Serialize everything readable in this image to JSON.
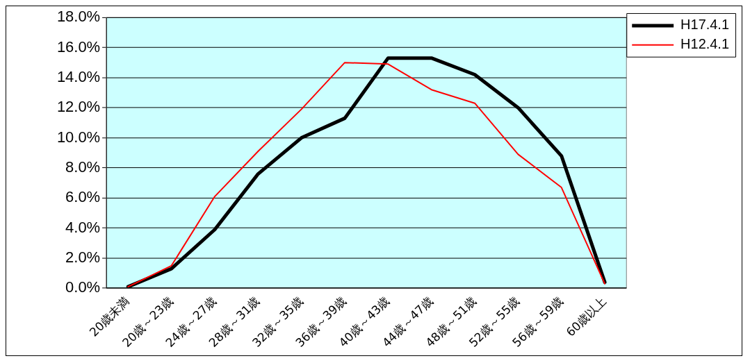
{
  "chart_data": {
    "type": "line",
    "categories": [
      "20歳未満",
      "20歳～23歳",
      "24歳～27歳",
      "28歳～31歳",
      "32歳～35歳",
      "36歳～39歳",
      "40歳～43歳",
      "44歳～47歳",
      "48歳～51歳",
      "52歳～55歳",
      "56歳～59歳",
      "60歳以上"
    ],
    "series": [
      {
        "name": "H17.4.1",
        "color": "#000000",
        "values": [
          0.1,
          1.3,
          3.9,
          7.6,
          10.0,
          11.3,
          15.3,
          15.3,
          14.2,
          12.0,
          8.8,
          0.4
        ]
      },
      {
        "name": "H12.4.1",
        "color": "#ff0000",
        "values": [
          0.1,
          1.5,
          6.1,
          9.1,
          11.9,
          15.0,
          14.9,
          13.2,
          12.3,
          8.9,
          6.7,
          0.3
        ]
      }
    ],
    "ylim": [
      0,
      18
    ],
    "yticks": [
      {
        "value": 0,
        "label": "0.0%"
      },
      {
        "value": 2,
        "label": "2.0%"
      },
      {
        "value": 4,
        "label": "4.0%"
      },
      {
        "value": 6,
        "label": "6.0%"
      },
      {
        "value": 8,
        "label": "8.0%"
      },
      {
        "value": 10,
        "label": "10.0%"
      },
      {
        "value": 12,
        "label": "12.0%"
      },
      {
        "value": 14,
        "label": "14.0%"
      },
      {
        "value": 16,
        "label": "16.0%"
      },
      {
        "value": 18,
        "label": "18.0%"
      }
    ],
    "grid": "y",
    "legend": "top right",
    "marker": "none",
    "line_style": "solid"
  }
}
